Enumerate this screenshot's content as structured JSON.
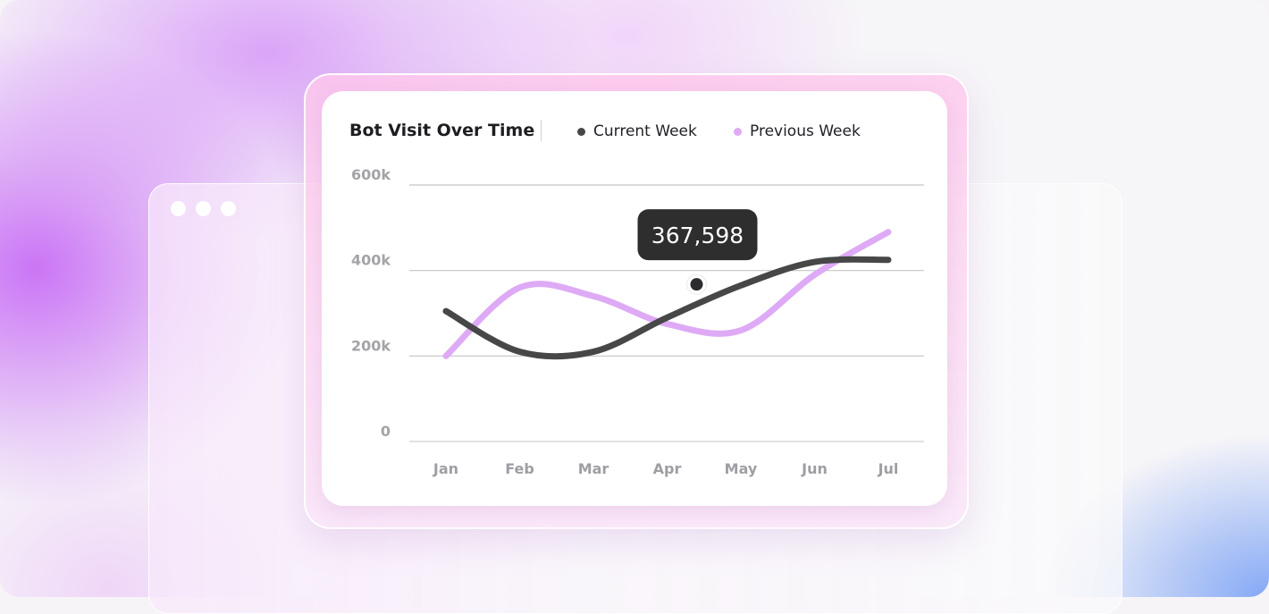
{
  "window": {
    "controls": [
      "close",
      "minimize",
      "maximize"
    ]
  },
  "chart_data": {
    "type": "line",
    "title": "Bot Visit Over Time",
    "categories": [
      "Jan",
      "Feb",
      "Mar",
      "Apr",
      "May",
      "Jun",
      "Jul"
    ],
    "y_ticks": [
      "0",
      "200k",
      "400k",
      "600k"
    ],
    "ylim": [
      0,
      600000
    ],
    "grid": true,
    "legend_position": "top",
    "series": [
      {
        "name": "Current Week",
        "color": "#474747",
        "values": [
          305000,
          210000,
          210000,
          290000,
          365000,
          420000,
          425000
        ]
      },
      {
        "name": "Previous Week",
        "color": "#deaaf5",
        "values": [
          200000,
          360000,
          340000,
          275000,
          260000,
          390000,
          490000
        ]
      }
    ],
    "tooltip": {
      "label": "367,598",
      "value": 367598,
      "x": 3.4
    }
  }
}
